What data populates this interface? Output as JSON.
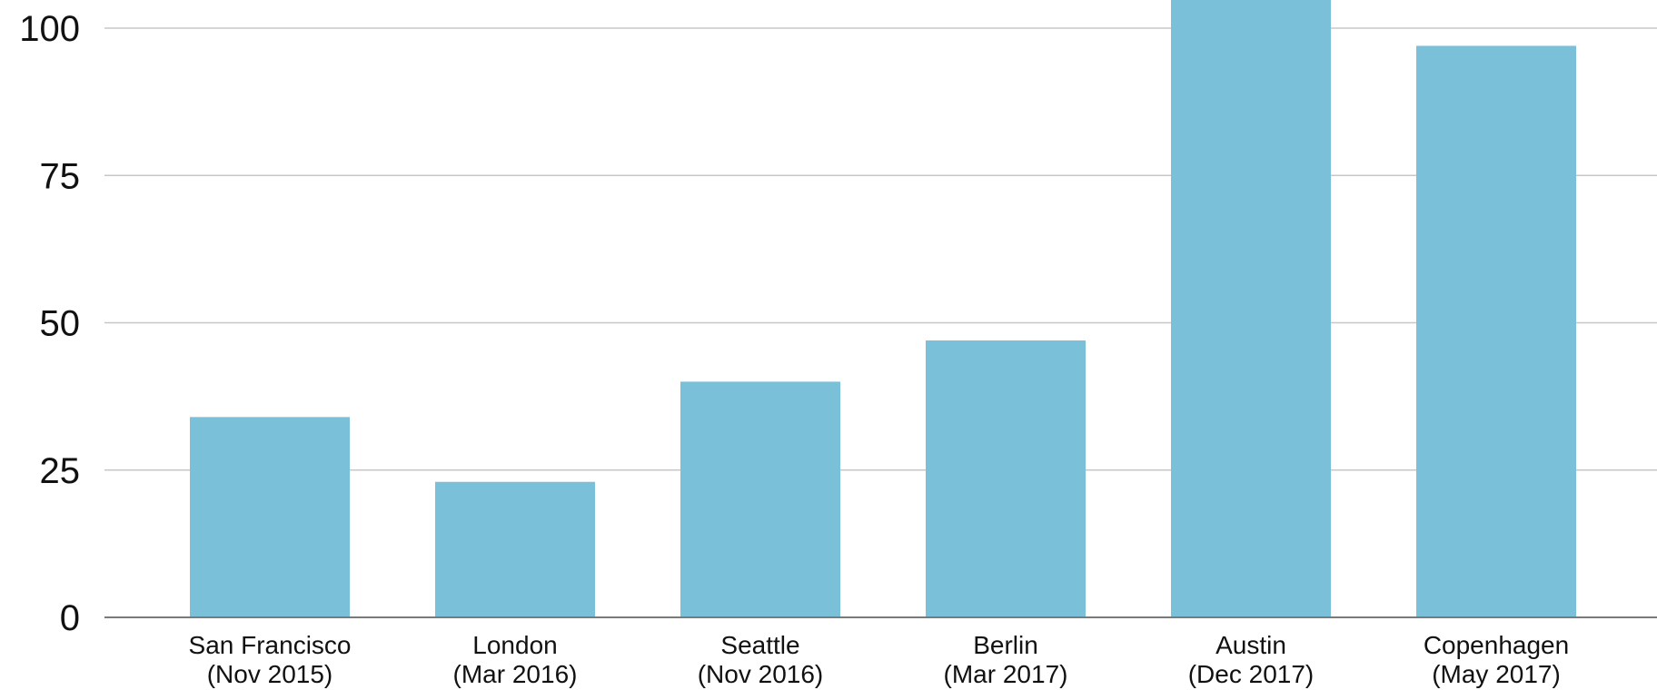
{
  "chart_data": {
    "type": "bar",
    "categories": [
      [
        "San Francisco",
        "(Nov 2015)"
      ],
      [
        "London",
        "(Mar 2016)"
      ],
      [
        "Seattle",
        "(Nov 2016)"
      ],
      [
        "Berlin",
        "(Mar 2017)"
      ],
      [
        "Austin",
        "(Dec 2017)"
      ],
      [
        "Copenhagen",
        "(May 2017)"
      ]
    ],
    "values": [
      34,
      23,
      40,
      47,
      109,
      97
    ],
    "y_ticks": [
      0,
      25,
      50,
      75,
      100
    ],
    "ylim": [
      0,
      105
    ],
    "title": "",
    "xlabel": "",
    "ylabel": "",
    "grid": true,
    "legend": "none",
    "bar_color": "#7ac0d8"
  }
}
